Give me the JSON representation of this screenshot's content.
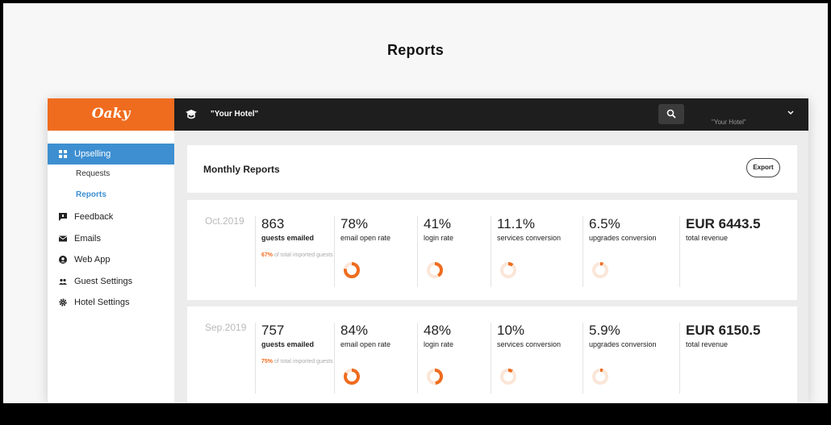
{
  "page": {
    "title": "Reports"
  },
  "app": {
    "logo": "Oaky",
    "hotel_name": "\"Your Hotel\"",
    "hotel_select": "\"Your Hotel\"",
    "accent": "#ef6c1f",
    "active_blue": "#3d8fd1"
  },
  "sidebar": {
    "items": [
      {
        "label": "Upselling",
        "icon": "grid-icon",
        "active": true
      },
      {
        "label": "Requests",
        "sub": true
      },
      {
        "label": "Reports",
        "sub": true,
        "active": true
      },
      {
        "label": "Feedback",
        "icon": "chat-icon"
      },
      {
        "label": "Emails",
        "icon": "envelope-icon"
      },
      {
        "label": "Web App",
        "icon": "user-circle-icon"
      },
      {
        "label": "Guest Settings",
        "icon": "users-icon"
      },
      {
        "label": "Hotel Settings",
        "icon": "gear-icon"
      }
    ]
  },
  "header": {
    "title": "Monthly Reports",
    "export_label": "Export"
  },
  "reports": [
    {
      "month": "Oct.2019",
      "guests_emailed": {
        "value": "863",
        "label": "guests emailed",
        "note_pct": "67%",
        "note_text": "of total imported guests"
      },
      "email_open_rate": {
        "value": "78%",
        "label": "email open rate",
        "fraction": 0.78
      },
      "login_rate": {
        "value": "41%",
        "label": "login rate",
        "fraction": 0.41
      },
      "services_conversion": {
        "value": "11.1%",
        "label": "services conversion",
        "fraction": 0.111
      },
      "upgrades_conversion": {
        "value": "6.5%",
        "label": "upgrades conversion",
        "fraction": 0.065
      },
      "total_revenue": {
        "value": "EUR 6443.5",
        "label": "total revenue"
      }
    },
    {
      "month": "Sep.2019",
      "guests_emailed": {
        "value": "757",
        "label": "guests emailed",
        "note_pct": "75%",
        "note_text": "of total imported guests"
      },
      "email_open_rate": {
        "value": "84%",
        "label": "email open rate",
        "fraction": 0.84
      },
      "login_rate": {
        "value": "48%",
        "label": "login rate",
        "fraction": 0.48
      },
      "services_conversion": {
        "value": "10%",
        "label": "services conversion",
        "fraction": 0.1
      },
      "upgrades_conversion": {
        "value": "5.9%",
        "label": "upgrades conversion",
        "fraction": 0.059
      },
      "total_revenue": {
        "value": "EUR 6150.5",
        "label": "total revenue"
      }
    }
  ]
}
